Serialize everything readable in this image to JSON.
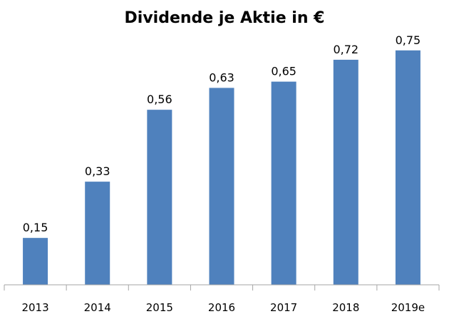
{
  "chart_data": {
    "type": "bar",
    "title": "Dividende je Aktie in €",
    "categories": [
      "2013",
      "2014",
      "2015",
      "2016",
      "2017",
      "2018",
      "2019e"
    ],
    "values": [
      0.15,
      0.33,
      0.56,
      0.63,
      0.65,
      0.72,
      0.75
    ],
    "data_labels": [
      "0,15",
      "0,33",
      "0,56",
      "0,63",
      "0,65",
      "0,72",
      "0,75"
    ],
    "xlabel": "",
    "ylabel": "",
    "ylim": [
      0,
      0.8
    ],
    "grid": false,
    "legend": "none",
    "bar_color": "#4f81bd",
    "axis_color": "#a6a6a6"
  }
}
